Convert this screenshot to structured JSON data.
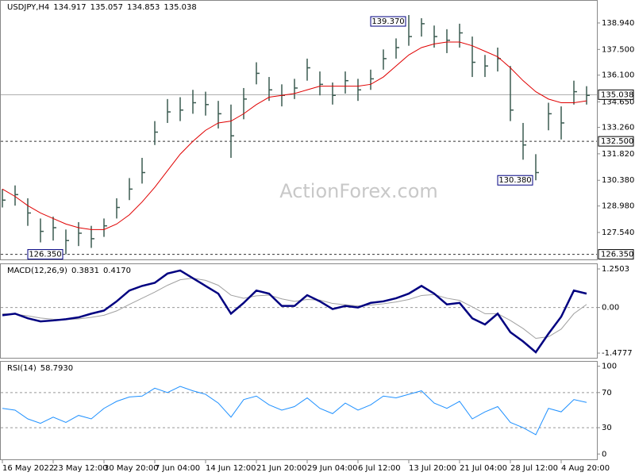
{
  "chart_data": [
    {
      "type": "ohlc",
      "title": "USDJPY,H4",
      "quote": [
        134.917,
        135.057,
        134.853,
        135.038
      ],
      "watermark": "ActionForex.com",
      "color": "#3a5a50",
      "high": [
        129.9,
        130.1,
        129.4,
        128.3,
        128.4,
        127.7,
        128.1,
        127.9,
        128.3,
        129.4,
        130.5,
        131.6,
        133.6,
        134.8,
        134.9,
        135.3,
        135.2,
        134.7,
        134.5,
        135.4,
        136.8,
        136.0,
        135.6,
        135.9,
        137.0,
        136.3,
        135.7,
        136.3,
        135.9,
        136.4,
        137.5,
        138.1,
        139.37,
        139.2,
        138.8,
        138.6,
        138.9,
        138.2,
        137.2,
        137.6,
        136.6,
        133.5,
        131.8,
        134.6,
        134.4,
        135.8,
        135.5
      ],
      "low": [
        128.9,
        129.0,
        127.9,
        127.0,
        127.1,
        126.35,
        126.8,
        126.7,
        127.3,
        128.3,
        129.3,
        130.2,
        132.3,
        133.5,
        133.6,
        134.0,
        133.9,
        133.2,
        131.6,
        133.7,
        135.6,
        134.7,
        134.4,
        134.8,
        135.8,
        135.0,
        134.5,
        135.1,
        134.7,
        135.3,
        136.4,
        137.0,
        137.7,
        138.2,
        137.6,
        137.3,
        137.6,
        136.0,
        136.0,
        136.3,
        133.6,
        131.5,
        130.38,
        133.1,
        132.6,
        134.5,
        134.5
      ],
      "close": [
        129.3,
        129.6,
        128.6,
        127.6,
        127.8,
        127.1,
        127.5,
        127.2,
        127.9,
        128.9,
        129.9,
        130.8,
        133.0,
        134.1,
        134.2,
        134.6,
        134.5,
        134.0,
        132.8,
        134.8,
        136.2,
        135.3,
        135.0,
        135.4,
        136.5,
        135.6,
        135.0,
        135.8,
        135.3,
        135.9,
        137.0,
        137.6,
        138.2,
        138.9,
        138.2,
        138.0,
        138.4,
        136.8,
        136.6,
        137.0,
        134.2,
        132.3,
        130.8,
        134.0,
        133.5,
        135.2,
        135.0
      ],
      "overlay": {
        "color": "#e00000",
        "values": [
          129.9,
          129.5,
          129.0,
          128.6,
          128.3,
          128.0,
          127.8,
          127.7,
          127.7,
          128.0,
          128.5,
          129.2,
          130.0,
          130.9,
          131.8,
          132.5,
          133.1,
          133.5,
          133.6,
          134.0,
          134.5,
          134.9,
          135.0,
          135.1,
          135.3,
          135.5,
          135.5,
          135.5,
          135.5,
          135.6,
          136.0,
          136.6,
          137.2,
          137.6,
          137.8,
          137.9,
          137.9,
          137.7,
          137.4,
          137.1,
          136.5,
          135.8,
          135.2,
          134.8,
          134.6,
          134.6,
          134.7
        ]
      },
      "ylim": [
        126.03,
        140.19
      ],
      "yticks": [
        {
          "value": 138.94,
          "label": "138.940"
        },
        {
          "value": 137.5,
          "label": "137.500"
        },
        {
          "value": 136.1,
          "label": "136.100"
        },
        {
          "value": 134.65,
          "label": "134.650"
        },
        {
          "value": 133.26,
          "label": "133.260"
        },
        {
          "value": 131.82,
          "label": "131.820"
        },
        {
          "value": 130.38,
          "label": "130.380"
        },
        {
          "value": 128.98,
          "label": "128.980"
        },
        {
          "value": 127.54,
          "label": "127.540"
        }
      ],
      "levels": [
        {
          "value": 135.038,
          "style": "solid"
        },
        {
          "value": 132.5,
          "label": "132.500",
          "style": "dashed"
        },
        {
          "value": 126.35,
          "label": "126.350",
          "style": "dashed"
        }
      ],
      "annotations": [
        {
          "value": 139.37,
          "label": "139.370",
          "at": "high"
        },
        {
          "value": 130.38,
          "label": "130.380",
          "at": "low"
        },
        {
          "value": 126.35,
          "label": "126.350",
          "at": "low"
        }
      ]
    },
    {
      "type": "macd",
      "title": "MACD(12,26,9)",
      "readings": [
        0.3831,
        {
          "value": 0.417,
          "label": "0.4170"
        }
      ],
      "series": [
        {
          "color": "#000080",
          "values": [
            -0.25,
            -0.2,
            -0.35,
            -0.45,
            -0.42,
            -0.38,
            -0.32,
            -0.2,
            -0.1,
            0.2,
            0.55,
            0.7,
            0.8,
            1.1,
            1.2,
            0.95,
            0.7,
            0.45,
            -0.2,
            0.15,
            0.55,
            0.45,
            0.05,
            0.05,
            0.4,
            0.2,
            -0.05,
            0.05,
            0.0,
            0.15,
            0.2,
            0.3,
            0.45,
            0.7,
            0.45,
            0.1,
            0.15,
            -0.35,
            -0.55,
            -0.2,
            -0.8,
            -1.1,
            -1.45,
            -0.85,
            -0.3,
            0.55,
            0.45
          ]
        },
        {
          "color": "#a0a0a0",
          "values": [
            -0.2,
            -0.22,
            -0.27,
            -0.34,
            -0.38,
            -0.39,
            -0.37,
            -0.32,
            -0.25,
            -0.11,
            0.1,
            0.3,
            0.5,
            0.72,
            0.9,
            0.95,
            0.88,
            0.72,
            0.4,
            0.3,
            0.38,
            0.4,
            0.28,
            0.2,
            0.26,
            0.24,
            0.13,
            0.09,
            0.05,
            0.08,
            0.12,
            0.18,
            0.26,
            0.39,
            0.42,
            0.3,
            0.23,
            0.02,
            -0.2,
            -0.2,
            -0.42,
            -0.68,
            -1.0,
            -0.95,
            -0.7,
            -0.2,
            0.1
          ]
        }
      ],
      "ylim": [
        -1.656,
        1.43
      ],
      "yticks": [
        1.2503,
        {
          "value": 0,
          "label": "0.00"
        },
        -1.4777
      ],
      "levels": [
        0
      ]
    },
    {
      "type": "line",
      "title": "RSI(14)",
      "readings": [
        {
          "value": 58.793,
          "label": "58.7930"
        }
      ],
      "categories": [
        "16 May 2022",
        null,
        null,
        null,
        "23 May 12:00",
        null,
        null,
        null,
        "30 May 20:00",
        null,
        null,
        null,
        "7 Jun 04:00",
        null,
        null,
        null,
        "14 Jun 12:00",
        null,
        null,
        null,
        "21 Jun 20:00",
        null,
        null,
        null,
        "29 Jun 04:00",
        null,
        null,
        null,
        "6 Jul 12:00",
        null,
        null,
        null,
        "13 Jul 20:00",
        null,
        null,
        null,
        "21 Jul 04:00",
        null,
        null,
        null,
        "28 Jul 12:00",
        null,
        null,
        null,
        "4 Aug 20:00",
        null,
        null
      ],
      "series": [
        {
          "color": "#1e90ff",
          "values": [
            52,
            50,
            40,
            35,
            42,
            36,
            44,
            40,
            52,
            60,
            65,
            66,
            75,
            70,
            77,
            72,
            68,
            58,
            42,
            62,
            66,
            56,
            50,
            54,
            64,
            52,
            46,
            58,
            50,
            56,
            66,
            64,
            68,
            72,
            58,
            52,
            60,
            40,
            48,
            54,
            36,
            30,
            22,
            52,
            48,
            62,
            58.8
          ]
        }
      ],
      "ylim": [
        -7,
        106
      ],
      "yticks": [
        100,
        70,
        30,
        0
      ],
      "levels": [
        70,
        30
      ]
    }
  ]
}
